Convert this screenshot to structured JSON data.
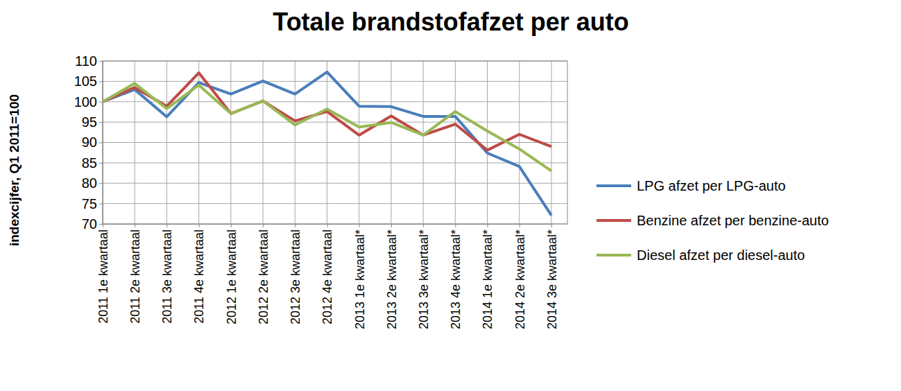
{
  "chart_data": {
    "type": "line",
    "title": "Totale brandstofafzet per auto",
    "y_label": "indexcijfer, Q1 2011=100",
    "categories": [
      "2011 1e kwartaal",
      "2011 2e kwartaal",
      "2011 3e kwartaal",
      "2011 4e kwartaal",
      "2012 1e kwartaal",
      "2012 2e kwartaal",
      "2012 3e kwartaal",
      "2012 4e kwartaal",
      "2013 1e kwartaal*",
      "2013 2e kwartaal*",
      "2013 3e kwartaal*",
      "2013 4e kwartaal*",
      "2014 1e kwartaal*",
      "2014 2e kwartaal*",
      "2014 3e kwartaal*"
    ],
    "series": [
      {
        "name": "LPG afzet per LPG-auto",
        "color": "#4a7ebb",
        "values": [
          100,
          103,
          96.3,
          104.7,
          101.9,
          105.1,
          101.9,
          107.3,
          98.9,
          98.8,
          96.4,
          96.4,
          87.4,
          84.1,
          72.1
        ]
      },
      {
        "name": "Benzine afzet per benzine-auto",
        "color": "#be4b48",
        "values": [
          100,
          103.5,
          98.9,
          107.1,
          97.1,
          100.2,
          95.3,
          97.6,
          91.8,
          96.5,
          91.8,
          94.5,
          88.1,
          92.0,
          89.0
        ]
      },
      {
        "name": "Diesel afzet per diesel-auto",
        "color": "#98b954",
        "values": [
          100,
          104.5,
          98.3,
          104.1,
          97.1,
          100.2,
          94.3,
          98.2,
          93.8,
          94.9,
          91.8,
          97.6,
          92.8,
          88.4,
          83.0
        ]
      }
    ],
    "ylim": [
      70,
      110
    ],
    "yticks": [
      70,
      75,
      80,
      85,
      90,
      95,
      100,
      105,
      110
    ],
    "grid": true,
    "legend": "right"
  }
}
